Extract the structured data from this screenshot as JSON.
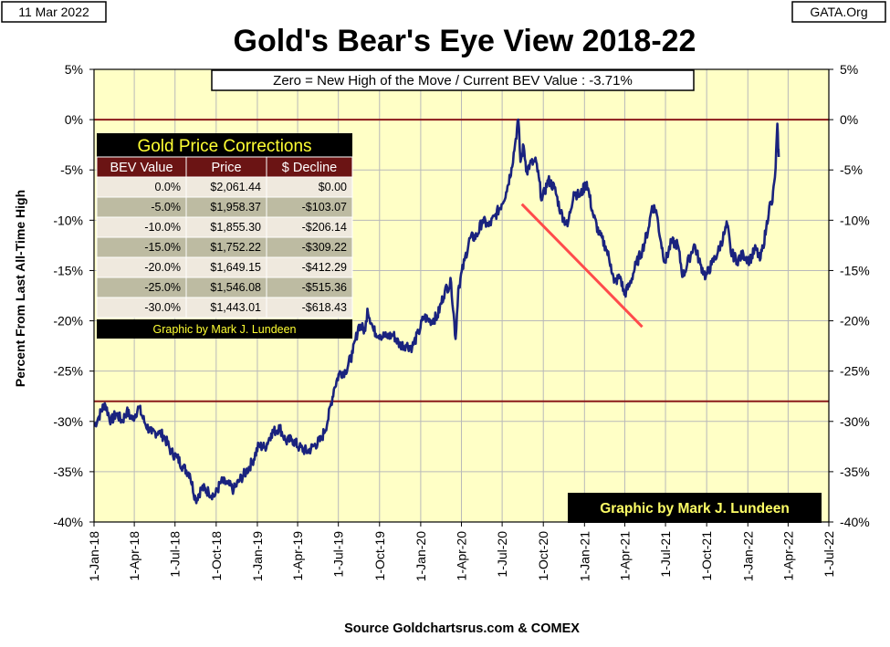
{
  "header": {
    "date": "11 Mar 2022",
    "site": "GATA.Org"
  },
  "annotation": "Zero = New High of the Move / Current  BEV Value : -3.71%",
  "credit": "Graphic by Mark J. Lundeen",
  "source": "Source Goldchartsrus.com & COMEX",
  "colors": {
    "plot_bg": "#ffffc6",
    "series": "#1a237e",
    "reference_line": "#8b1a1a",
    "trend_line": "#ff4b4b",
    "table_title_bg": "#000000",
    "table_title_fg": "#ffff33",
    "table_header_bg": "#6b1414",
    "table_row_light": "#efe9de",
    "table_row_dark": "#bdbba2"
  },
  "table": {
    "title": "Gold Price Corrections",
    "headers": [
      "BEV Value",
      "Price",
      "$ Decline"
    ],
    "rows": [
      [
        "0.0%",
        "$2,061.44",
        "$0.00"
      ],
      [
        "-5.0%",
        "$1,958.37",
        "-$103.07"
      ],
      [
        "-10.0%",
        "$1,855.30",
        "-$206.14"
      ],
      [
        "-15.0%",
        "$1,752.22",
        "-$309.22"
      ],
      [
        "-20.0%",
        "$1,649.15",
        "-$412.29"
      ],
      [
        "-25.0%",
        "$1,546.08",
        "-$515.36"
      ],
      [
        "-30.0%",
        "$1,443.01",
        "-$618.43"
      ]
    ],
    "credit": "Graphic by Mark J. Lundeen"
  },
  "chart_data": {
    "type": "line",
    "title": "Gold's Bear's Eye View 2018-22",
    "xlabel": "",
    "ylabel": "Percent   From Last  All-Time High",
    "ylim": [
      -40,
      5
    ],
    "y_ticks": [
      5,
      0,
      -5,
      -10,
      -15,
      -20,
      -25,
      -30,
      -35,
      -40
    ],
    "y_tick_labels": [
      "5%",
      "0%",
      "-5%",
      "-10%",
      "-15%",
      "-20%",
      "-25%",
      "-30%",
      "-35%",
      "-40%"
    ],
    "x_range": [
      "2018-01-01",
      "2022-07-01"
    ],
    "x_ticks": [
      "2018-01-01",
      "2018-04-01",
      "2018-07-01",
      "2018-10-01",
      "2019-01-01",
      "2019-04-01",
      "2019-07-01",
      "2019-10-01",
      "2020-01-01",
      "2020-04-01",
      "2020-07-01",
      "2020-10-01",
      "2021-01-01",
      "2021-04-01",
      "2021-07-01",
      "2021-10-01",
      "2022-01-01",
      "2022-04-01",
      "2022-07-01"
    ],
    "x_tick_labels": [
      "1-Jan-18",
      "1-Apr-18",
      "1-Jul-18",
      "1-Oct-18",
      "1-Jan-19",
      "1-Apr-19",
      "1-Jul-19",
      "1-Oct-19",
      "1-Jan-20",
      "1-Apr-20",
      "1-Jul-20",
      "1-Oct-20",
      "1-Jan-21",
      "1-Apr-21",
      "1-Jul-21",
      "1-Oct-21",
      "1-Jan-22",
      "1-Apr-22",
      "1-Jul-22"
    ],
    "grid": true,
    "reference_lines": [
      0,
      -28
    ],
    "series": [
      {
        "points": [
          [
            "2018-01-01",
            -30.5
          ],
          [
            "2018-01-12",
            -29.5
          ],
          [
            "2018-01-25",
            -28.2
          ],
          [
            "2018-02-08",
            -30.0
          ],
          [
            "2018-02-20",
            -29.2
          ],
          [
            "2018-03-05",
            -30.0
          ],
          [
            "2018-03-15",
            -29.0
          ],
          [
            "2018-03-28",
            -29.8
          ],
          [
            "2018-04-11",
            -28.6
          ],
          [
            "2018-04-25",
            -30.2
          ],
          [
            "2018-05-10",
            -31.2
          ],
          [
            "2018-05-25",
            -31.0
          ],
          [
            "2018-06-08",
            -31.6
          ],
          [
            "2018-06-22",
            -33.0
          ],
          [
            "2018-07-06",
            -33.6
          ],
          [
            "2018-07-20",
            -34.6
          ],
          [
            "2018-08-03",
            -35.2
          ],
          [
            "2018-08-16",
            -37.8
          ],
          [
            "2018-08-30",
            -36.6
          ],
          [
            "2018-09-14",
            -37.0
          ],
          [
            "2018-09-28",
            -37.4
          ],
          [
            "2018-10-12",
            -36.0
          ],
          [
            "2018-10-26",
            -36.2
          ],
          [
            "2018-11-09",
            -36.8
          ],
          [
            "2018-11-23",
            -35.8
          ],
          [
            "2018-12-07",
            -35.0
          ],
          [
            "2018-12-21",
            -34.0
          ],
          [
            "2019-01-04",
            -32.4
          ],
          [
            "2019-01-18",
            -32.6
          ],
          [
            "2019-02-01",
            -31.2
          ],
          [
            "2019-02-20",
            -30.6
          ],
          [
            "2019-03-06",
            -32.0
          ],
          [
            "2019-03-20",
            -31.8
          ],
          [
            "2019-04-05",
            -32.6
          ],
          [
            "2019-04-23",
            -33.0
          ],
          [
            "2019-05-08",
            -32.4
          ],
          [
            "2019-05-24",
            -31.8
          ],
          [
            "2019-06-07",
            -30.0
          ],
          [
            "2019-06-21",
            -26.8
          ],
          [
            "2019-07-03",
            -25.2
          ],
          [
            "2019-07-17",
            -25.0
          ],
          [
            "2019-08-02",
            -23.2
          ],
          [
            "2019-08-16",
            -20.4
          ],
          [
            "2019-08-30",
            -21.0
          ],
          [
            "2019-09-04",
            -18.8
          ],
          [
            "2019-09-18",
            -21.0
          ],
          [
            "2019-10-02",
            -21.4
          ],
          [
            "2019-10-16",
            -21.6
          ],
          [
            "2019-11-01",
            -21.4
          ],
          [
            "2019-11-15",
            -22.4
          ],
          [
            "2019-11-29",
            -22.4
          ],
          [
            "2019-12-13",
            -22.6
          ],
          [
            "2019-12-27",
            -21.2
          ],
          [
            "2020-01-08",
            -19.6
          ],
          [
            "2020-01-22",
            -20.0
          ],
          [
            "2020-02-07",
            -19.6
          ],
          [
            "2020-02-24",
            -17.0
          ],
          [
            "2020-03-09",
            -16.2
          ],
          [
            "2020-03-19",
            -21.8
          ],
          [
            "2020-03-25",
            -16.8
          ],
          [
            "2020-04-08",
            -14.0
          ],
          [
            "2020-04-20",
            -11.8
          ],
          [
            "2020-05-05",
            -11.6
          ],
          [
            "2020-05-18",
            -10.0
          ],
          [
            "2020-06-01",
            -10.6
          ],
          [
            "2020-06-15",
            -9.6
          ],
          [
            "2020-06-30",
            -8.4
          ],
          [
            "2020-07-10",
            -7.2
          ],
          [
            "2020-07-22",
            -4.8
          ],
          [
            "2020-07-30",
            -2.4
          ],
          [
            "2020-08-06",
            0.0
          ],
          [
            "2020-08-11",
            -4.2
          ],
          [
            "2020-08-18",
            -2.6
          ],
          [
            "2020-08-25",
            -5.2
          ],
          [
            "2020-09-01",
            -4.4
          ],
          [
            "2020-09-15",
            -4.2
          ],
          [
            "2020-09-28",
            -8.0
          ],
          [
            "2020-10-12",
            -6.0
          ],
          [
            "2020-10-26",
            -6.8
          ],
          [
            "2020-11-09",
            -9.2
          ],
          [
            "2020-11-24",
            -10.6
          ],
          [
            "2020-12-08",
            -7.2
          ],
          [
            "2020-12-22",
            -7.6
          ],
          [
            "2021-01-06",
            -6.2
          ],
          [
            "2021-01-20",
            -9.4
          ],
          [
            "2021-02-03",
            -11.4
          ],
          [
            "2021-02-17",
            -12.6
          ],
          [
            "2021-03-01",
            -14.4
          ],
          [
            "2021-03-08",
            -16.2
          ],
          [
            "2021-03-22",
            -15.6
          ],
          [
            "2021-03-31",
            -17.4
          ],
          [
            "2021-04-12",
            -16.4
          ],
          [
            "2021-04-26",
            -14.4
          ],
          [
            "2021-05-10",
            -13.0
          ],
          [
            "2021-05-24",
            -10.8
          ],
          [
            "2021-06-01",
            -8.6
          ],
          [
            "2021-06-10",
            -9.0
          ],
          [
            "2021-06-21",
            -12.2
          ],
          [
            "2021-06-30",
            -14.2
          ],
          [
            "2021-07-14",
            -12.2
          ],
          [
            "2021-07-28",
            -12.4
          ],
          [
            "2021-08-09",
            -15.6
          ],
          [
            "2021-08-23",
            -13.8
          ],
          [
            "2021-09-03",
            -12.4
          ],
          [
            "2021-09-17",
            -14.4
          ],
          [
            "2021-09-29",
            -15.6
          ],
          [
            "2021-10-12",
            -14.4
          ],
          [
            "2021-10-26",
            -13.2
          ],
          [
            "2021-11-09",
            -11.4
          ],
          [
            "2021-11-16",
            -10.4
          ],
          [
            "2021-11-24",
            -13.2
          ],
          [
            "2021-12-08",
            -14.0
          ],
          [
            "2021-12-22",
            -13.4
          ],
          [
            "2022-01-05",
            -14.0
          ],
          [
            "2022-01-19",
            -12.8
          ],
          [
            "2022-01-28",
            -14.0
          ],
          [
            "2022-02-04",
            -12.6
          ],
          [
            "2022-02-11",
            -10.8
          ],
          [
            "2022-02-18",
            -8.6
          ],
          [
            "2022-02-25",
            -8.2
          ],
          [
            "2022-03-01",
            -6.2
          ],
          [
            "2022-03-04",
            -4.8
          ],
          [
            "2022-03-08",
            -0.4
          ],
          [
            "2022-03-10",
            -3.2
          ],
          [
            "2022-03-11",
            -3.71
          ]
        ]
      }
    ],
    "trend_line": {
      "start": [
        "2020-08-14",
        -8.4
      ],
      "end": [
        "2021-05-10",
        -20.6
      ]
    }
  }
}
